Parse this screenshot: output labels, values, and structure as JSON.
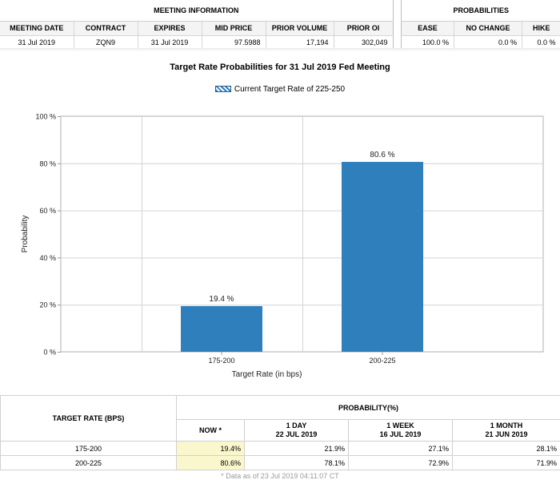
{
  "meeting_info": {
    "title": "MEETING INFORMATION",
    "columns": [
      "MEETING DATE",
      "CONTRACT",
      "EXPIRES",
      "MID PRICE",
      "PRIOR VOLUME",
      "PRIOR OI"
    ],
    "values": [
      "31 Jul 2019",
      "ZQN9",
      "31 Jul 2019",
      "97.5988",
      "17,194",
      "302,049"
    ]
  },
  "probabilities_info": {
    "title": "PROBABILITIES",
    "columns": [
      "EASE",
      "NO CHANGE",
      "HIKE"
    ],
    "values": [
      "100.0 %",
      "0.0 %",
      "0.0 %"
    ]
  },
  "chart_data": {
    "type": "bar",
    "title": "Target Rate Probabilities for 31 Jul 2019 Fed Meeting",
    "legend": "Current Target Rate of 225-250",
    "categories": [
      "175-200",
      "200-225"
    ],
    "values": [
      19.4,
      80.6
    ],
    "data_labels": [
      "19.4 %",
      "80.6 %"
    ],
    "xlabel": "Target Rate (in bps)",
    "ylabel": "Probability",
    "ylim": [
      0,
      100
    ],
    "yticks": [
      0,
      20,
      40,
      60,
      80,
      100
    ],
    "ytick_labels": [
      "0 %",
      "20 %",
      "40 %",
      "60 %",
      "80 %",
      "100 %"
    ],
    "grid": true,
    "bar_color": "#2f7fbd"
  },
  "prob_table": {
    "target_header": "TARGET RATE (BPS)",
    "prob_header": "PROBABILITY(%)",
    "periods": [
      {
        "label": "NOW *",
        "date": ""
      },
      {
        "label": "1 DAY",
        "date": "22 JUL 2019"
      },
      {
        "label": "1 WEEK",
        "date": "16 JUL 2019"
      },
      {
        "label": "1 MONTH",
        "date": "21 JUN 2019"
      }
    ],
    "rows": [
      {
        "target": "175-200",
        "values": [
          "19.4%",
          "21.9%",
          "27.1%",
          "28.1%"
        ]
      },
      {
        "target": "200-225",
        "values": [
          "80.6%",
          "78.1%",
          "72.9%",
          "71.9%"
        ]
      }
    ],
    "footnote": "* Data as of 23 Jul 2019 04:11:07 CT"
  }
}
